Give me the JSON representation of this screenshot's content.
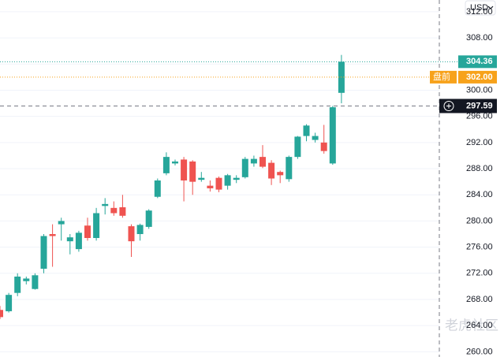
{
  "chart_data": {
    "type": "candlestick",
    "currency": "USD",
    "up_color": "#26a69a",
    "down_color": "#ef5350",
    "candles": [
      {
        "open": 266.4,
        "high": 267,
        "low": 265,
        "close": 265.3
      },
      {
        "open": 266.2,
        "high": 269,
        "low": 266,
        "close": 268.7
      },
      {
        "open": 269,
        "high": 272,
        "low": 268.5,
        "close": 271.5
      },
      {
        "open": 270.8,
        "high": 271.5,
        "low": 270.3,
        "close": 271.2
      },
      {
        "open": 269.6,
        "high": 272,
        "low": 269.5,
        "close": 271.7
      },
      {
        "open": 272.7,
        "high": 278,
        "low": 272,
        "close": 277.7
      },
      {
        "open": 278,
        "high": 279.5,
        "low": 273,
        "close": 277.7
      },
      {
        "open": 279.5,
        "high": 280.5,
        "low": 277,
        "close": 280
      },
      {
        "open": 276.9,
        "high": 278,
        "low": 274.9,
        "close": 277.5
      },
      {
        "open": 275.7,
        "high": 278.5,
        "low": 275.3,
        "close": 278.2
      },
      {
        "open": 279.3,
        "high": 280.5,
        "low": 277,
        "close": 277.4
      },
      {
        "open": 277.4,
        "high": 282,
        "low": 277,
        "close": 281.2
      },
      {
        "open": 282.3,
        "high": 283.5,
        "low": 281,
        "close": 282.6
      },
      {
        "open": 282,
        "high": 283,
        "low": 280.8,
        "close": 281.2
      },
      {
        "open": 282.1,
        "high": 284,
        "low": 280.5,
        "close": 280.8
      },
      {
        "open": 279.2,
        "high": 279.5,
        "low": 274.5,
        "close": 276.9
      },
      {
        "open": 278,
        "high": 279.6,
        "low": 277,
        "close": 279.4
      },
      {
        "open": 279.1,
        "high": 281.8,
        "low": 278.8,
        "close": 281.6
      },
      {
        "open": 283.7,
        "high": 286.5,
        "low": 283.5,
        "close": 286.2
      },
      {
        "open": 287.3,
        "high": 290.5,
        "low": 287,
        "close": 289.8
      },
      {
        "open": 288.8,
        "high": 289.4,
        "low": 288.5,
        "close": 289.1
      },
      {
        "open": 289.4,
        "high": 289.8,
        "low": 283,
        "close": 286.2
      },
      {
        "open": 289.1,
        "high": 289.3,
        "low": 284,
        "close": 286
      },
      {
        "open": 286.3,
        "high": 287.5,
        "low": 286,
        "close": 286.6
      },
      {
        "open": 285.4,
        "high": 286.2,
        "low": 284.5,
        "close": 285
      },
      {
        "open": 286.6,
        "high": 286.8,
        "low": 284.4,
        "close": 284.8
      },
      {
        "open": 285.4,
        "high": 287.2,
        "low": 284.8,
        "close": 287
      },
      {
        "open": 286.3,
        "high": 287,
        "low": 285.8,
        "close": 286.6
      },
      {
        "open": 286.7,
        "high": 289.8,
        "low": 286.5,
        "close": 289.5
      },
      {
        "open": 288.8,
        "high": 290,
        "low": 288.3,
        "close": 289.5
      },
      {
        "open": 289.8,
        "high": 291.6,
        "low": 288.1,
        "close": 288.3
      },
      {
        "open": 288.9,
        "high": 289.3,
        "low": 285.5,
        "close": 286.5
      },
      {
        "open": 287.5,
        "high": 287.7,
        "low": 285.8,
        "close": 287
      },
      {
        "open": 286.4,
        "high": 290,
        "low": 286,
        "close": 289.8
      },
      {
        "open": 289.8,
        "high": 293,
        "low": 289.5,
        "close": 292.9
      },
      {
        "open": 293,
        "high": 294.8,
        "low": 292.2,
        "close": 294.6
      },
      {
        "open": 292.4,
        "high": 293.5,
        "low": 292,
        "close": 293
      },
      {
        "open": 292,
        "high": 294.7,
        "low": 290.3,
        "close": 290.7
      },
      {
        "open": 288.8,
        "high": 297.6,
        "low": 288.6,
        "close": 297.4
      },
      {
        "open": 299.6,
        "high": 305.4,
        "low": 298,
        "close": 304.36
      }
    ],
    "ylim": [
      259.2,
      313.8
    ],
    "yticks": [
      {
        "value": 260,
        "label": "260.00"
      },
      {
        "value": 264,
        "label": "264.00"
      },
      {
        "value": 268,
        "label": "268.00"
      },
      {
        "value": 272,
        "label": "272.00"
      },
      {
        "value": 276,
        "label": "276.00"
      },
      {
        "value": 280,
        "label": "280.00"
      },
      {
        "value": 284,
        "label": "284.00"
      },
      {
        "value": 288,
        "label": "288.00"
      },
      {
        "value": 292,
        "label": "292.00"
      },
      {
        "value": 296,
        "label": "296.00"
      },
      {
        "value": 300,
        "label": "300.00"
      },
      {
        "value": 304,
        "label": "304.00"
      },
      {
        "value": 308,
        "label": "308.00"
      },
      {
        "value": 312,
        "label": "312.00"
      }
    ],
    "grid": true,
    "last_price": 304.36,
    "premarket": {
      "label": "盘前",
      "price": {
        "value": 302,
        "label": "302.00"
      }
    },
    "crosshair_price": 297.59,
    "watermark": "老虎社区"
  }
}
